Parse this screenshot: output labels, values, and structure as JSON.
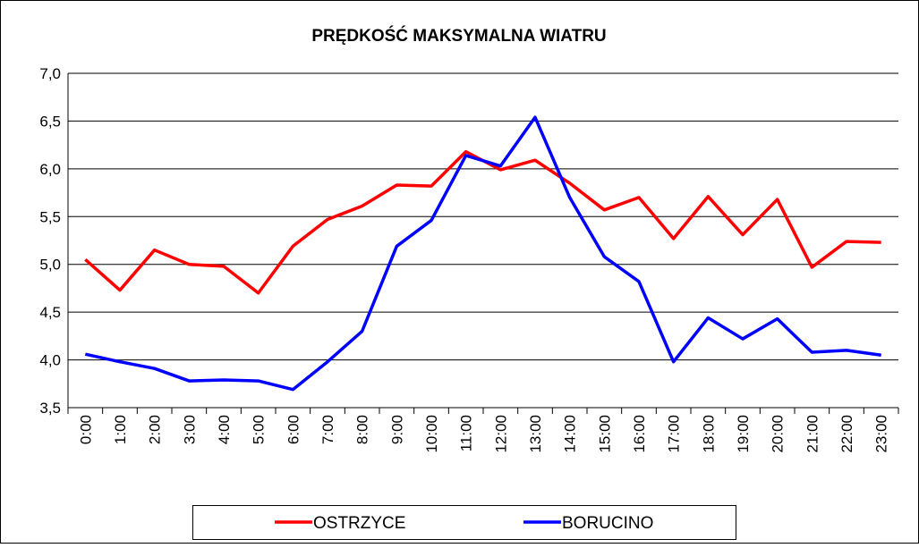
{
  "chart_data": {
    "type": "line",
    "title": "PRĘDKOŚĆ MAKSYMALNA WIATRU",
    "categories": [
      "0:00",
      "1:00",
      "2:00",
      "3:00",
      "4:00",
      "5:00",
      "6:00",
      "7:00",
      "8:00",
      "9:00",
      "10:00",
      "11:00",
      "12:00",
      "13:00",
      "14:00",
      "15:00",
      "16:00",
      "17:00",
      "18:00",
      "19:00",
      "20:00",
      "21:00",
      "22:00",
      "23:00"
    ],
    "series": [
      {
        "name": "OSTRZYCE",
        "color": "#ff0000",
        "values": [
          5.05,
          4.73,
          5.15,
          5.0,
          4.98,
          4.7,
          5.19,
          5.47,
          5.61,
          5.83,
          5.82,
          6.18,
          5.99,
          6.09,
          5.85,
          5.57,
          5.7,
          5.27,
          5.71,
          5.31,
          5.68,
          4.97,
          5.24,
          5.23
        ]
      },
      {
        "name": "BORUCINO",
        "color": "#0000ff",
        "values": [
          4.06,
          3.98,
          3.91,
          3.78,
          3.79,
          3.78,
          3.69,
          3.98,
          4.3,
          5.19,
          5.46,
          6.14,
          6.03,
          6.54,
          5.7,
          5.08,
          4.82,
          3.98,
          4.44,
          4.22,
          4.43,
          4.08,
          4.1,
          4.05
        ]
      }
    ],
    "ylim": [
      3.5,
      7
    ],
    "yticks": [
      {
        "value": 3.5,
        "label": "3,5"
      },
      {
        "value": 4,
        "label": "4,0"
      },
      {
        "value": 4.5,
        "label": "4,5"
      },
      {
        "value": 5,
        "label": "5,0"
      },
      {
        "value": 5.5,
        "label": "5,5"
      },
      {
        "value": 6,
        "label": "6,0"
      },
      {
        "value": 6.5,
        "label": "6,5"
      },
      {
        "value": 7,
        "label": "7,0"
      }
    ],
    "grid": true,
    "legend": "bottom"
  }
}
